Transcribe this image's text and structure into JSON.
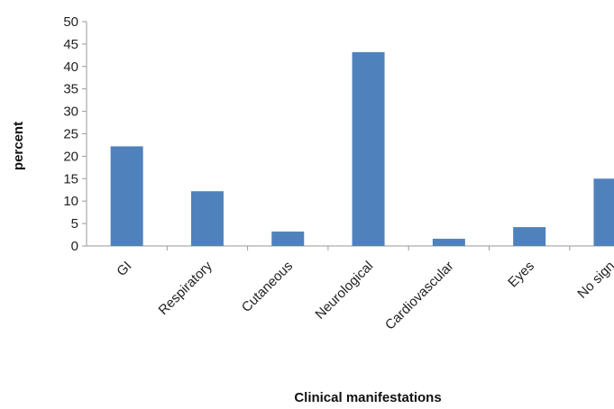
{
  "chart_data": {
    "type": "bar",
    "categories": [
      "GI",
      "Respiratory",
      "Cutaneous",
      "Neurological",
      "Cardiovascular",
      "Eyes",
      "No sign"
    ],
    "values": [
      22.2,
      12.2,
      3.2,
      43.2,
      1.6,
      4.2,
      15.0
    ],
    "xlabel": "Clinical manifestations",
    "ylabel": "percent",
    "ylim": [
      0,
      50
    ],
    "yticks": [
      "0",
      "5",
      "10",
      "15",
      "20",
      "25",
      "30",
      "35",
      "40",
      "45",
      "50"
    ],
    "bar_color": "#4F81BD",
    "grid": false,
    "legend": "none"
  }
}
